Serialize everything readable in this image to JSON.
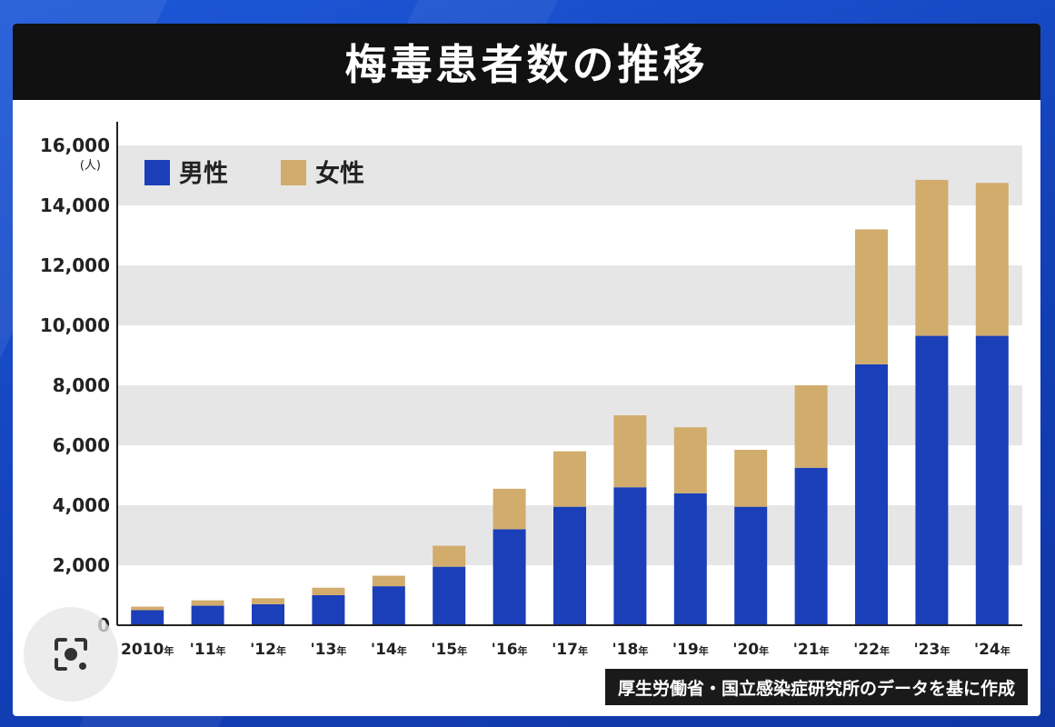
{
  "title": "梅毒患者数の推移",
  "source_note": "厚生労働省・国立感染症研究所のデータを基に作成",
  "icons": {
    "lens": "image-search-icon"
  },
  "colors": {
    "male": "#1b3fb8",
    "female": "#d1ac6c",
    "band": "#e6e6e6",
    "title_bg": "#111111"
  },
  "chart_data": {
    "type": "bar",
    "stacked": true,
    "title": "梅毒患者数の推移",
    "ylabel": "(人)",
    "xlabel": "",
    "ylim": [
      0,
      16000
    ],
    "yticks": [
      0,
      2000,
      4000,
      6000,
      8000,
      10000,
      12000,
      14000,
      16000
    ],
    "ytick_labels": [
      "0",
      "2,000",
      "4,000",
      "6,000",
      "8,000",
      "10,000",
      "12,000",
      "14,000",
      "16,000"
    ],
    "categories": [
      "2010",
      "'11",
      "'12",
      "'13",
      "'14",
      "'15",
      "'16",
      "'17",
      "'18",
      "'19",
      "'20",
      "'21",
      "'22",
      "'23",
      "'24"
    ],
    "category_suffix": "年",
    "grid": "alternating horizontal bands",
    "legend_position": "top-left",
    "series": [
      {
        "name": "男性",
        "color": "#1b3fb8",
        "values": [
          500,
          650,
          700,
          1000,
          1300,
          1950,
          3200,
          3950,
          4600,
          4400,
          3950,
          5250,
          8700,
          9650,
          9650
        ]
      },
      {
        "name": "女性",
        "color": "#d1ac6c",
        "values": [
          120,
          180,
          200,
          250,
          350,
          700,
          1350,
          1850,
          2400,
          2200,
          1900,
          2750,
          4500,
          5200,
          5100
        ]
      }
    ]
  }
}
